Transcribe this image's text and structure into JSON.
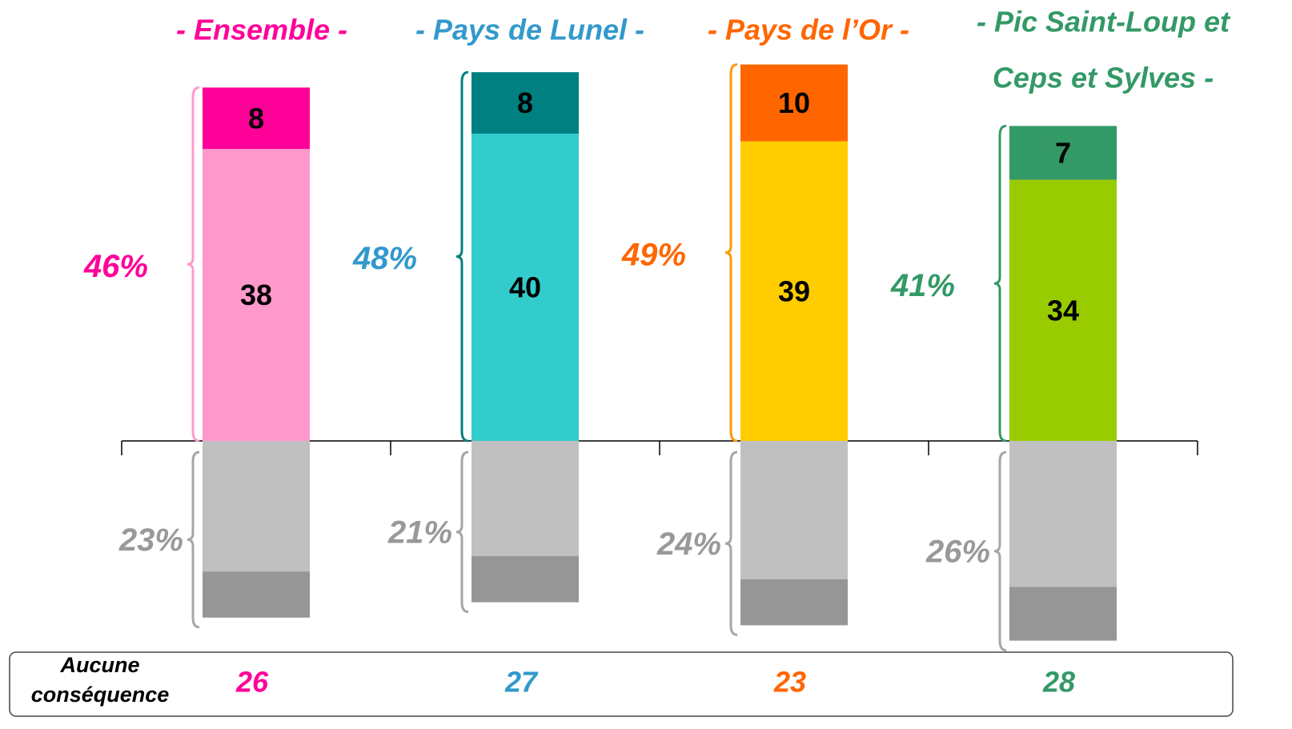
{
  "chart_data": {
    "type": "diverging-stacked-bar",
    "categories": [
      [
        "- Ensemble -"
      ],
      [
        "- Pays de Lunel -"
      ],
      [
        "- Pays de l’Or -"
      ],
      [
        "- Pic Saint-Loup et",
        "Ceps et Sylves -"
      ]
    ],
    "category_colors": [
      "#ff0099",
      "#3399cc",
      "#ff6600",
      "#339966"
    ],
    "series": [
      {
        "side": "above",
        "colors": [
          "#ff99cc",
          "#33cccc",
          "#ffcc00",
          "#99cc00"
        ],
        "values": [
          38,
          40,
          39,
          34
        ],
        "show_labels": true
      },
      {
        "side": "above",
        "colors": [
          "#ff0099",
          "#008080",
          "#ff6600",
          "#339966"
        ],
        "values": [
          8,
          8,
          10,
          7
        ],
        "show_labels": true
      },
      {
        "side": "below",
        "color": "#c0c0c0",
        "values": [
          17,
          15,
          18,
          19
        ],
        "show_labels": false
      },
      {
        "side": "below",
        "color": "#969696",
        "values": [
          6,
          6,
          6,
          7
        ],
        "show_labels": false
      }
    ],
    "totals_above": {
      "values": [
        46,
        48,
        49,
        41
      ],
      "value_labels": [
        "46%",
        "48%",
        "49%",
        "41%"
      ],
      "brace_colors": [
        "#ff99cc",
        "#008080",
        "#ff9900",
        "#339966"
      ]
    },
    "totals_below": {
      "values": [
        23,
        21,
        24,
        26
      ],
      "value_labels": [
        "23%",
        "21%",
        "24%",
        "26%"
      ],
      "color": "#999999",
      "brace_color": "#a6a6a6"
    },
    "footer": {
      "label": [
        "Aucune",
        "conséquence"
      ],
      "values": [
        26,
        27,
        23,
        28
      ]
    }
  }
}
